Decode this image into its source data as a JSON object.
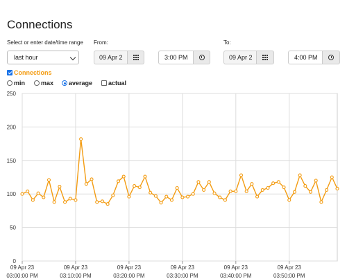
{
  "page": {
    "title": "Connections"
  },
  "range": {
    "label": "Select or enter date/time range",
    "selected": "last hour"
  },
  "from": {
    "label": "From:",
    "date": "09 Apr 2",
    "time": "3:00 PM"
  },
  "to": {
    "label": "To:",
    "date": "09 Apr 2",
    "time": "4:00 PM"
  },
  "series_toggle": {
    "label": "Connections",
    "checked": true
  },
  "aggregation": {
    "options": [
      {
        "label": "min",
        "selected": false
      },
      {
        "label": "max",
        "selected": false
      },
      {
        "label": "average",
        "selected": true
      },
      {
        "label": "actual",
        "selected": false
      }
    ]
  },
  "colors": {
    "series": "#f39c12",
    "accent": "#1a73e8",
    "grid": "#dddddd"
  },
  "icons": {
    "date_picker": "calendar-grid-icon",
    "time_picker": "clock-icon",
    "dropdown": "chevron-down-icon"
  },
  "chart_data": {
    "type": "line",
    "y_ticks": [
      "0",
      "50",
      "100",
      "150",
      "200",
      "250"
    ],
    "ylim": [
      0,
      250
    ],
    "xlim": [
      0,
      59
    ],
    "x_ticks": [
      {
        "at": 0,
        "date": "09 Apr 23",
        "time": "03:00:00 PM"
      },
      {
        "at": 10,
        "date": "09 Apr 23",
        "time": "03:10:00 PM"
      },
      {
        "at": 20,
        "date": "09 Apr 23",
        "time": "03:20:00 PM"
      },
      {
        "at": 30,
        "date": "09 Apr 23",
        "time": "03:30:00 PM"
      },
      {
        "at": 40,
        "date": "09 Apr 23",
        "time": "03:40:00 PM"
      },
      {
        "at": 50,
        "date": "09 Apr 23",
        "time": "03:50:00 PM"
      }
    ],
    "grid": true,
    "series": [
      {
        "name": "Connections",
        "values": [
          100,
          104,
          91,
          101,
          95,
          121,
          88,
          111,
          88,
          93,
          91,
          182,
          115,
          122,
          88,
          89,
          85,
          98,
          119,
          126,
          96,
          112,
          110,
          126,
          102,
          97,
          87,
          96,
          91,
          109,
          95,
          96,
          100,
          118,
          106,
          118,
          101,
          95,
          91,
          104,
          104,
          128,
          104,
          115,
          96,
          106,
          109,
          116,
          118,
          110,
          91,
          103,
          128,
          112,
          103,
          120,
          88,
          106,
          125,
          108
        ]
      }
    ]
  }
}
